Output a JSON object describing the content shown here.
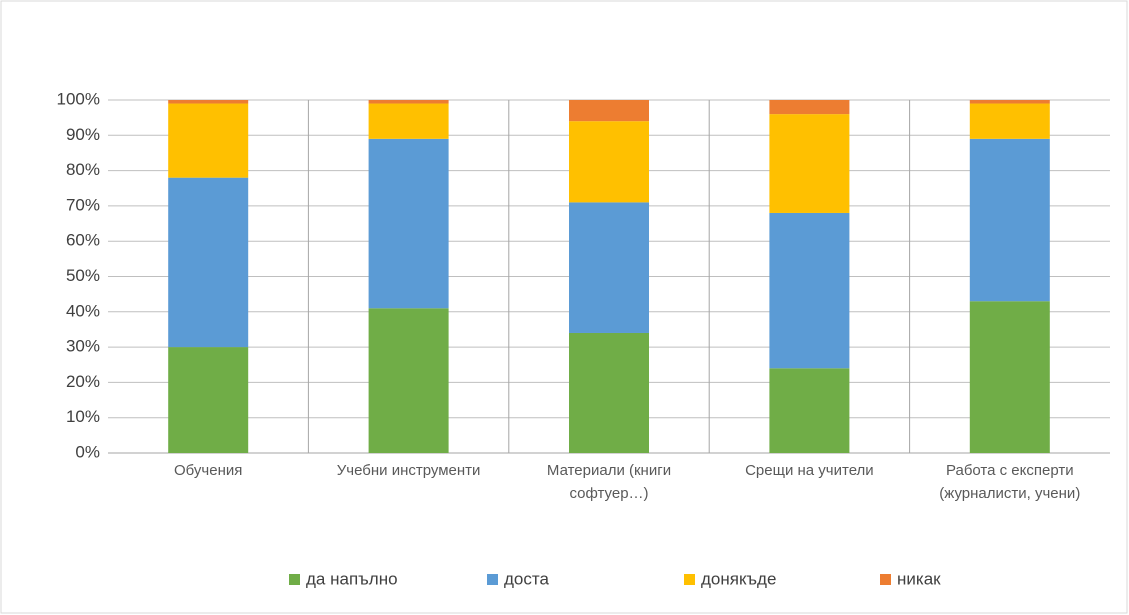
{
  "chart_data": {
    "type": "stacked_bar",
    "categories": [
      "Обучения",
      "Учебни инструменти",
      "Материали (книги софтуер…)",
      "Срещи на учители",
      "Работа с експерти (журналисти, учени)"
    ],
    "series": [
      {
        "name": "да напълно",
        "color": "#70ad47",
        "values": [
          30,
          41,
          34,
          24,
          43
        ]
      },
      {
        "name": "доста",
        "color": "#5b9bd5",
        "values": [
          48,
          48,
          37,
          44,
          46
        ]
      },
      {
        "name": "донякъде",
        "color": "#ffc000",
        "values": [
          21,
          10,
          23,
          28,
          10
        ]
      },
      {
        "name": "никак",
        "color": "#ed7d31",
        "values": [
          1,
          1,
          6,
          4,
          1
        ]
      }
    ],
    "ylim": [
      0,
      100
    ],
    "yticks": [
      {
        "value": 0,
        "label": "0%"
      },
      {
        "value": 10,
        "label": "10%"
      },
      {
        "value": 20,
        "label": "20%"
      },
      {
        "value": 30,
        "label": "30%"
      },
      {
        "value": 40,
        "label": "40%"
      },
      {
        "value": 50,
        "label": "50%"
      },
      {
        "value": 60,
        "label": "60%"
      },
      {
        "value": 70,
        "label": "70%"
      },
      {
        "value": 80,
        "label": "80%"
      },
      {
        "value": 90,
        "label": "90%"
      },
      {
        "value": 100,
        "label": "100%"
      }
    ],
    "grid": true,
    "legend": "bottom"
  }
}
